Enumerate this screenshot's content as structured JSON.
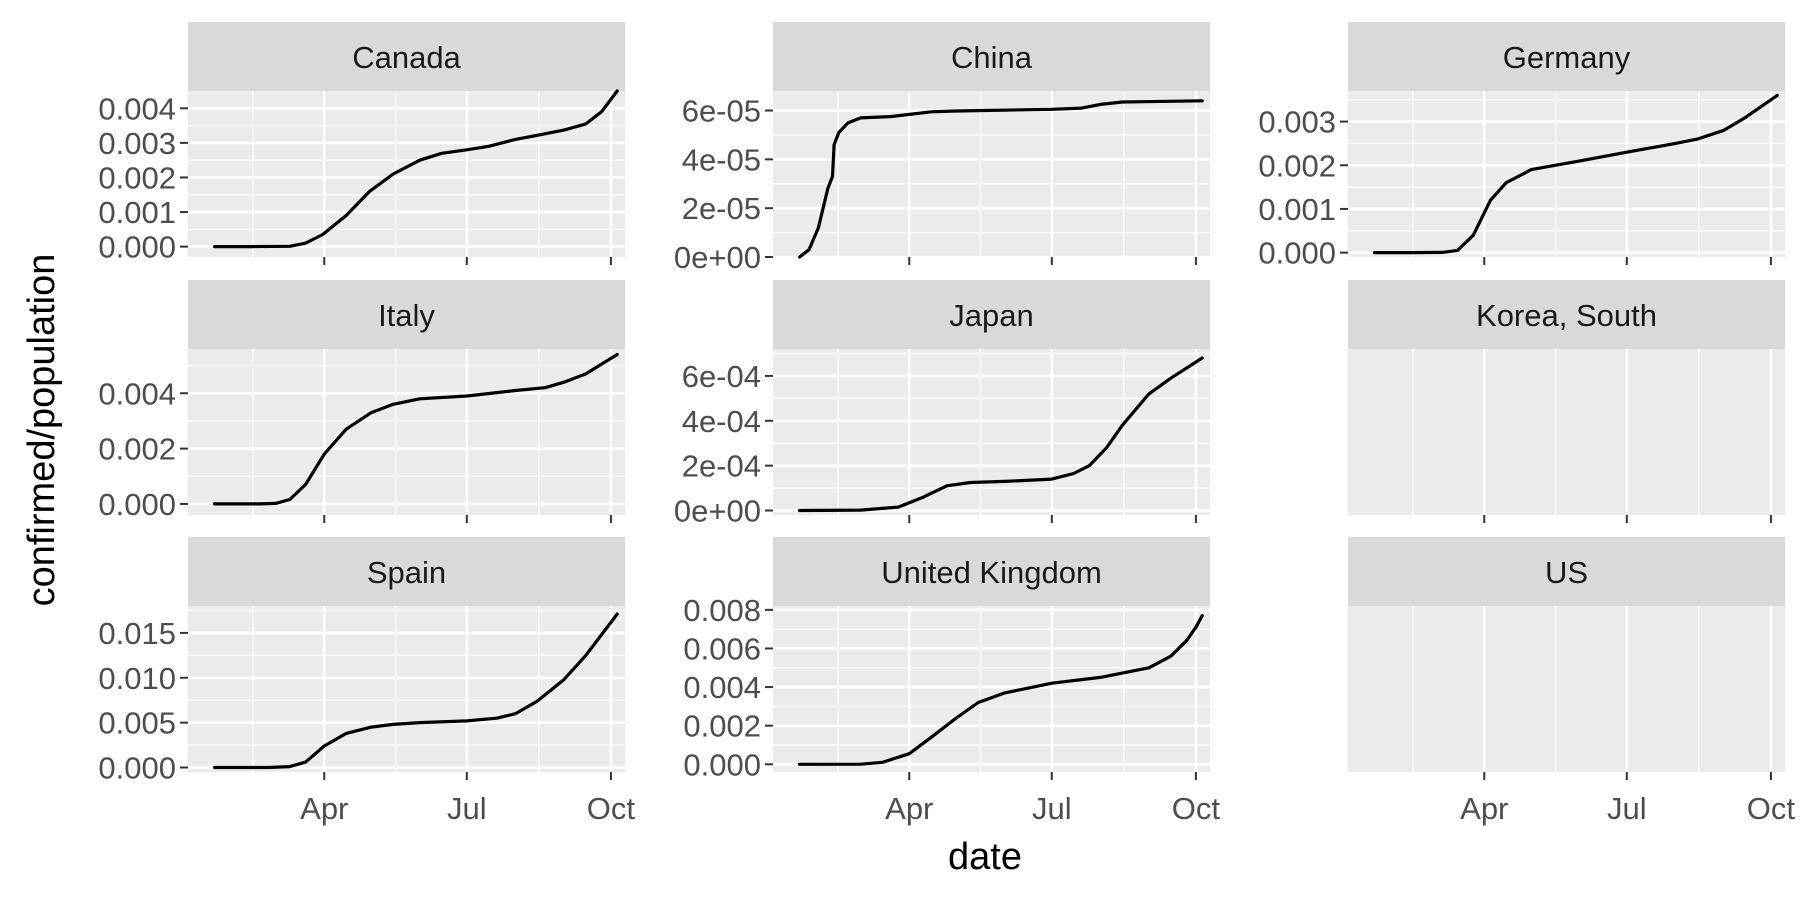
{
  "chart_data": {
    "type": "line",
    "layout": "facet_wrap",
    "xlabel": "date",
    "ylabel": "confirmed/population",
    "x_ticks": [
      "Apr",
      "Jul",
      "Oct"
    ],
    "x_tick_dates": [
      "2020-04-01",
      "2020-07-01",
      "2020-10-01"
    ],
    "x_range": [
      "2020-01-05",
      "2020-10-10"
    ],
    "grid": true,
    "legend": "none",
    "colors": {
      "panel_bg": "#EBEBEB",
      "strip_bg": "#D9D9D9",
      "grid": "#FFFFFF",
      "line": "#000000",
      "tick_text": "#4D4D4D"
    },
    "panels": [
      {
        "name": "Canada",
        "ylim": [
          -0.0003,
          0.0045
        ],
        "y_ticks": [
          "0.000",
          "0.001",
          "0.002",
          "0.003",
          "0.004"
        ],
        "y_tick_values": [
          0,
          0.001,
          0.002,
          0.003,
          0.004
        ],
        "series": [
          {
            "x": [
              "2020-01-22",
              "2020-02-15",
              "2020-03-10",
              "2020-03-20",
              "2020-03-31",
              "2020-04-15",
              "2020-04-30",
              "2020-05-15",
              "2020-06-01",
              "2020-06-15",
              "2020-07-01",
              "2020-07-15",
              "2020-08-01",
              "2020-08-15",
              "2020-09-01",
              "2020-09-15",
              "2020-09-25",
              "2020-10-05"
            ],
            "values": [
              0,
              0,
              1e-05,
              0.0001,
              0.00035,
              0.0009,
              0.0016,
              0.0021,
              0.0025,
              0.0027,
              0.0028,
              0.0029,
              0.0031,
              0.00322,
              0.00337,
              0.00355,
              0.0039,
              0.0045
            ]
          }
        ]
      },
      {
        "name": "China",
        "ylim": [
          0,
          6.8e-05
        ],
        "y_ticks": [
          "0e+00",
          "2e-05",
          "4e-05",
          "6e-05"
        ],
        "y_tick_values": [
          0,
          2e-05,
          4e-05,
          6e-05
        ],
        "series": [
          {
            "x": [
              "2020-01-22",
              "2020-01-28",
              "2020-02-03",
              "2020-02-09",
              "2020-02-12",
              "2020-02-13",
              "2020-02-16",
              "2020-02-22",
              "2020-03-01",
              "2020-03-20",
              "2020-04-15",
              "2020-05-01",
              "2020-07-01",
              "2020-07-20",
              "2020-08-01",
              "2020-08-15",
              "2020-10-05"
            ],
            "values": [
              0,
              3e-06,
              1.2e-05,
              2.8e-05,
              3.3e-05,
              4.6e-05,
              5.1e-05,
              5.5e-05,
              5.7e-05,
              5.75e-05,
              5.95e-05,
              5.98e-05,
              6.05e-05,
              6.1e-05,
              6.25e-05,
              6.35e-05,
              6.4e-05
            ]
          }
        ]
      },
      {
        "name": "Germany",
        "ylim": [
          -0.0001,
          0.0037
        ],
        "y_ticks": [
          "0.000",
          "0.001",
          "0.002",
          "0.003"
        ],
        "y_tick_values": [
          0,
          0.001,
          0.002,
          0.003
        ],
        "series": [
          {
            "x": [
              "2020-01-22",
              "2020-02-15",
              "2020-03-05",
              "2020-03-15",
              "2020-03-25",
              "2020-04-05",
              "2020-04-15",
              "2020-05-01",
              "2020-06-01",
              "2020-07-01",
              "2020-08-01",
              "2020-08-15",
              "2020-09-01",
              "2020-09-15",
              "2020-10-05"
            ],
            "values": [
              0,
              0,
              5e-06,
              5e-05,
              0.0004,
              0.0012,
              0.0016,
              0.0019,
              0.0021,
              0.0023,
              0.0025,
              0.0026,
              0.0028,
              0.0031,
              0.0036
            ]
          }
        ]
      },
      {
        "name": "Italy",
        "ylim": [
          -0.0004,
          0.0056
        ],
        "y_ticks": [
          "0.000",
          "0.002",
          "0.004"
        ],
        "y_tick_values": [
          0,
          0.002,
          0.004
        ],
        "series": [
          {
            "x": [
              "2020-01-22",
              "2020-02-20",
              "2020-03-01",
              "2020-03-10",
              "2020-03-20",
              "2020-04-01",
              "2020-04-15",
              "2020-05-01",
              "2020-05-15",
              "2020-06-01",
              "2020-07-01",
              "2020-08-01",
              "2020-08-20",
              "2020-09-01",
              "2020-09-15",
              "2020-10-05"
            ],
            "values": [
              0,
              0,
              2e-05,
              0.00016,
              0.0007,
              0.0018,
              0.0027,
              0.0033,
              0.0036,
              0.0038,
              0.0039,
              0.0041,
              0.0042,
              0.0044,
              0.0047,
              0.0054
            ]
          }
        ]
      },
      {
        "name": "Japan",
        "ylim": [
          -2e-05,
          0.00072
        ],
        "y_ticks": [
          "0e+00",
          "2e-04",
          "4e-04",
          "6e-04"
        ],
        "y_tick_values": [
          0,
          0.0002,
          0.0004,
          0.0006
        ],
        "series": [
          {
            "x": [
              "2020-01-22",
              "2020-03-01",
              "2020-03-25",
              "2020-04-10",
              "2020-04-25",
              "2020-05-10",
              "2020-06-01",
              "2020-07-01",
              "2020-07-15",
              "2020-07-25",
              "2020-08-05",
              "2020-08-15",
              "2020-09-01",
              "2020-09-15",
              "2020-10-05"
            ],
            "values": [
              0,
              2e-06,
              1.5e-05,
              6e-05,
              0.00011,
              0.000125,
              0.00013,
              0.00014,
              0.000165,
              0.0002,
              0.00028,
              0.00038,
              0.00052,
              0.00059,
              0.00068
            ]
          }
        ]
      },
      {
        "name": "Korea, South",
        "ylim": [
          0,
          1
        ],
        "y_ticks": [],
        "y_tick_values": [],
        "series": []
      },
      {
        "name": "Spain",
        "ylim": [
          -0.0005,
          0.018
        ],
        "y_ticks": [
          "0.000",
          "0.005",
          "0.010",
          "0.015"
        ],
        "y_tick_values": [
          0,
          0.005,
          0.01,
          0.015
        ],
        "series": [
          {
            "x": [
              "2020-01-22",
              "2020-02-25",
              "2020-03-10",
              "2020-03-20",
              "2020-04-01",
              "2020-04-15",
              "2020-05-01",
              "2020-05-15",
              "2020-06-01",
              "2020-07-01",
              "2020-07-20",
              "2020-08-01",
              "2020-08-15",
              "2020-09-01",
              "2020-09-15",
              "2020-10-05"
            ],
            "values": [
              0,
              0,
              0.0001,
              0.0006,
              0.0024,
              0.0038,
              0.0045,
              0.0048,
              0.005,
              0.0052,
              0.0055,
              0.006,
              0.0074,
              0.0098,
              0.0125,
              0.0171
            ]
          }
        ]
      },
      {
        "name": "United Kingdom",
        "ylim": [
          -0.0004,
          0.0082
        ],
        "y_ticks": [
          "0.000",
          "0.002",
          "0.004",
          "0.006",
          "0.008"
        ],
        "y_tick_values": [
          0,
          0.002,
          0.004,
          0.006,
          0.008
        ],
        "series": [
          {
            "x": [
              "2020-01-22",
              "2020-03-01",
              "2020-03-15",
              "2020-04-01",
              "2020-04-15",
              "2020-05-01",
              "2020-05-15",
              "2020-06-01",
              "2020-07-01",
              "2020-08-01",
              "2020-09-01",
              "2020-09-15",
              "2020-09-25",
              "2020-10-01",
              "2020-10-05"
            ],
            "values": [
              0,
              5e-06,
              0.0001,
              0.00055,
              0.0014,
              0.0024,
              0.0032,
              0.0037,
              0.0042,
              0.0045,
              0.005,
              0.0056,
              0.0064,
              0.0071,
              0.0077
            ]
          }
        ]
      },
      {
        "name": "US",
        "ylim": [
          0,
          1
        ],
        "y_ticks": [],
        "y_tick_values": [],
        "series": []
      }
    ]
  }
}
